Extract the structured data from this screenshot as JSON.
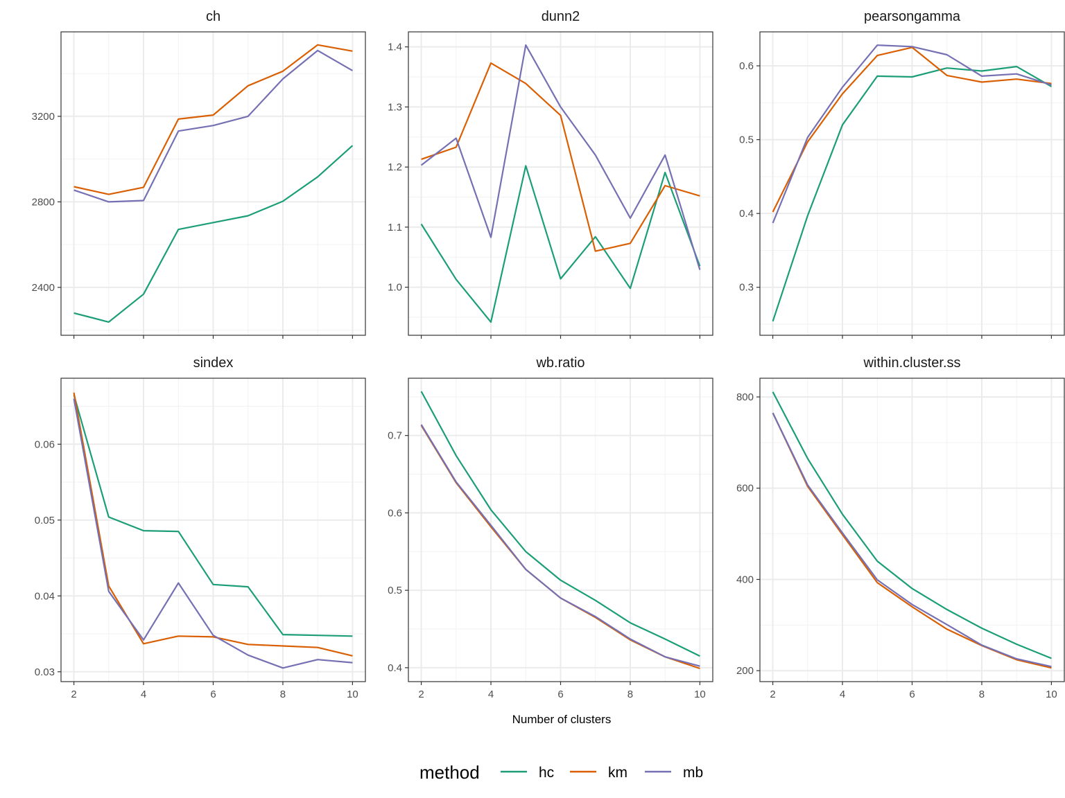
{
  "chart_data": {
    "type": "line",
    "xlabel": "Number of clusters",
    "x": [
      2,
      3,
      4,
      5,
      6,
      7,
      8,
      9,
      10
    ],
    "xlim": [
      1.63,
      10.37
    ],
    "x_ticks": [
      2,
      4,
      6,
      8,
      10
    ],
    "grid": true,
    "legend": {
      "title": "method",
      "placement": "bottom",
      "entries": [
        "hc",
        "km",
        "mb"
      ]
    },
    "colors": {
      "hc": "#1b9e77",
      "km": "#d95f02",
      "mb": "#7570b3"
    },
    "panels": [
      {
        "title": "ch",
        "ylim": [
          2176,
          3595
        ],
        "y_ticks": [
          2400,
          2800,
          3200
        ],
        "y_tick_labels": [
          "2400",
          "2800",
          "3200"
        ],
        "series": [
          {
            "name": "hc",
            "values": [
              2280,
              2238,
              2368,
              2671,
              2703,
              2735,
              2803,
              2917,
              3063
            ]
          },
          {
            "name": "km",
            "values": [
              2871,
              2835,
              2868,
              3187,
              3206,
              3343,
              3411,
              3534,
              3505
            ]
          },
          {
            "name": "mb",
            "values": [
              2855,
              2800,
              2806,
              3131,
              3157,
              3200,
              3375,
              3508,
              3414
            ]
          }
        ]
      },
      {
        "title": "dunn2",
        "ylim": [
          0.92,
          1.425
        ],
        "y_ticks": [
          1.0,
          1.1,
          1.2,
          1.3,
          1.4
        ],
        "y_tick_labels": [
          "1.0",
          "1.1",
          "1.2",
          "1.3",
          "1.4"
        ],
        "series": [
          {
            "name": "hc",
            "values": [
              1.105,
              1.013,
              0.942,
              1.202,
              1.014,
              1.084,
              0.998,
              1.191,
              1.035
            ]
          },
          {
            "name": "km",
            "values": [
              1.213,
              1.233,
              1.373,
              1.339,
              1.286,
              1.06,
              1.073,
              1.169,
              1.152
            ]
          },
          {
            "name": "mb",
            "values": [
              1.203,
              1.248,
              1.083,
              1.403,
              1.3,
              1.22,
              1.115,
              1.22,
              1.029
            ]
          }
        ]
      },
      {
        "title": "pearsongamma",
        "ylim": [
          0.235,
          0.646
        ],
        "y_ticks": [
          0.3,
          0.4,
          0.5,
          0.6
        ],
        "y_tick_labels": [
          "0.3",
          "0.4",
          "0.5",
          "0.6"
        ],
        "series": [
          {
            "name": "hc",
            "values": [
              0.254,
              0.397,
              0.52,
              0.586,
              0.585,
              0.597,
              0.593,
              0.599,
              0.572
            ]
          },
          {
            "name": "km",
            "values": [
              0.402,
              0.497,
              0.562,
              0.614,
              0.625,
              0.587,
              0.578,
              0.582,
              0.576
            ]
          },
          {
            "name": "mb",
            "values": [
              0.387,
              0.503,
              0.571,
              0.628,
              0.626,
              0.615,
              0.586,
              0.589,
              0.574
            ]
          }
        ]
      },
      {
        "title": "sindex",
        "ylim": [
          0.0287,
          0.0687
        ],
        "y_ticks": [
          0.03,
          0.04,
          0.05,
          0.06
        ],
        "y_tick_labels": [
          "0.03",
          "0.04",
          "0.05",
          "0.06"
        ],
        "series": [
          {
            "name": "hc",
            "values": [
              0.0665,
              0.0504,
              0.0486,
              0.0485,
              0.0415,
              0.0412,
              0.0349,
              0.0348,
              0.0347
            ]
          },
          {
            "name": "km",
            "values": [
              0.0668,
              0.0413,
              0.0337,
              0.0347,
              0.0346,
              0.0336,
              0.0334,
              0.0332,
              0.0321
            ]
          },
          {
            "name": "mb",
            "values": [
              0.066,
              0.0406,
              0.0342,
              0.0417,
              0.0348,
              0.0322,
              0.0305,
              0.0316,
              0.0312
            ]
          }
        ]
      },
      {
        "title": "wb.ratio",
        "ylim": [
          0.382,
          0.774
        ],
        "y_ticks": [
          0.4,
          0.5,
          0.6,
          0.7
        ],
        "y_tick_labels": [
          "0.4",
          "0.5",
          "0.6",
          "0.7"
        ],
        "series": [
          {
            "name": "hc",
            "values": [
              0.757,
              0.674,
              0.604,
              0.55,
              0.513,
              0.487,
              0.458,
              0.437,
              0.415
            ]
          },
          {
            "name": "km",
            "values": [
              0.713,
              0.639,
              0.582,
              0.527,
              0.49,
              0.465,
              0.436,
              0.414,
              0.399
            ]
          },
          {
            "name": "mb",
            "values": [
              0.714,
              0.64,
              0.584,
              0.527,
              0.49,
              0.466,
              0.437,
              0.414,
              0.402
            ]
          }
        ]
      },
      {
        "title": "within.cluster.ss",
        "ylim": [
          176,
          841
        ],
        "y_ticks": [
          200,
          400,
          600,
          800
        ],
        "y_tick_labels": [
          "200",
          "400",
          "600",
          "800"
        ],
        "series": [
          {
            "name": "hc",
            "values": [
              811,
              665,
              543,
              440,
              380,
              334,
              293,
              258,
              227
            ]
          },
          {
            "name": "km",
            "values": [
              765,
              604,
              498,
              393,
              340,
              291,
              255,
              224,
              206
            ]
          },
          {
            "name": "mb",
            "values": [
              765,
              607,
              502,
              399,
              345,
              301,
              256,
              226,
              209
            ]
          }
        ]
      }
    ]
  }
}
